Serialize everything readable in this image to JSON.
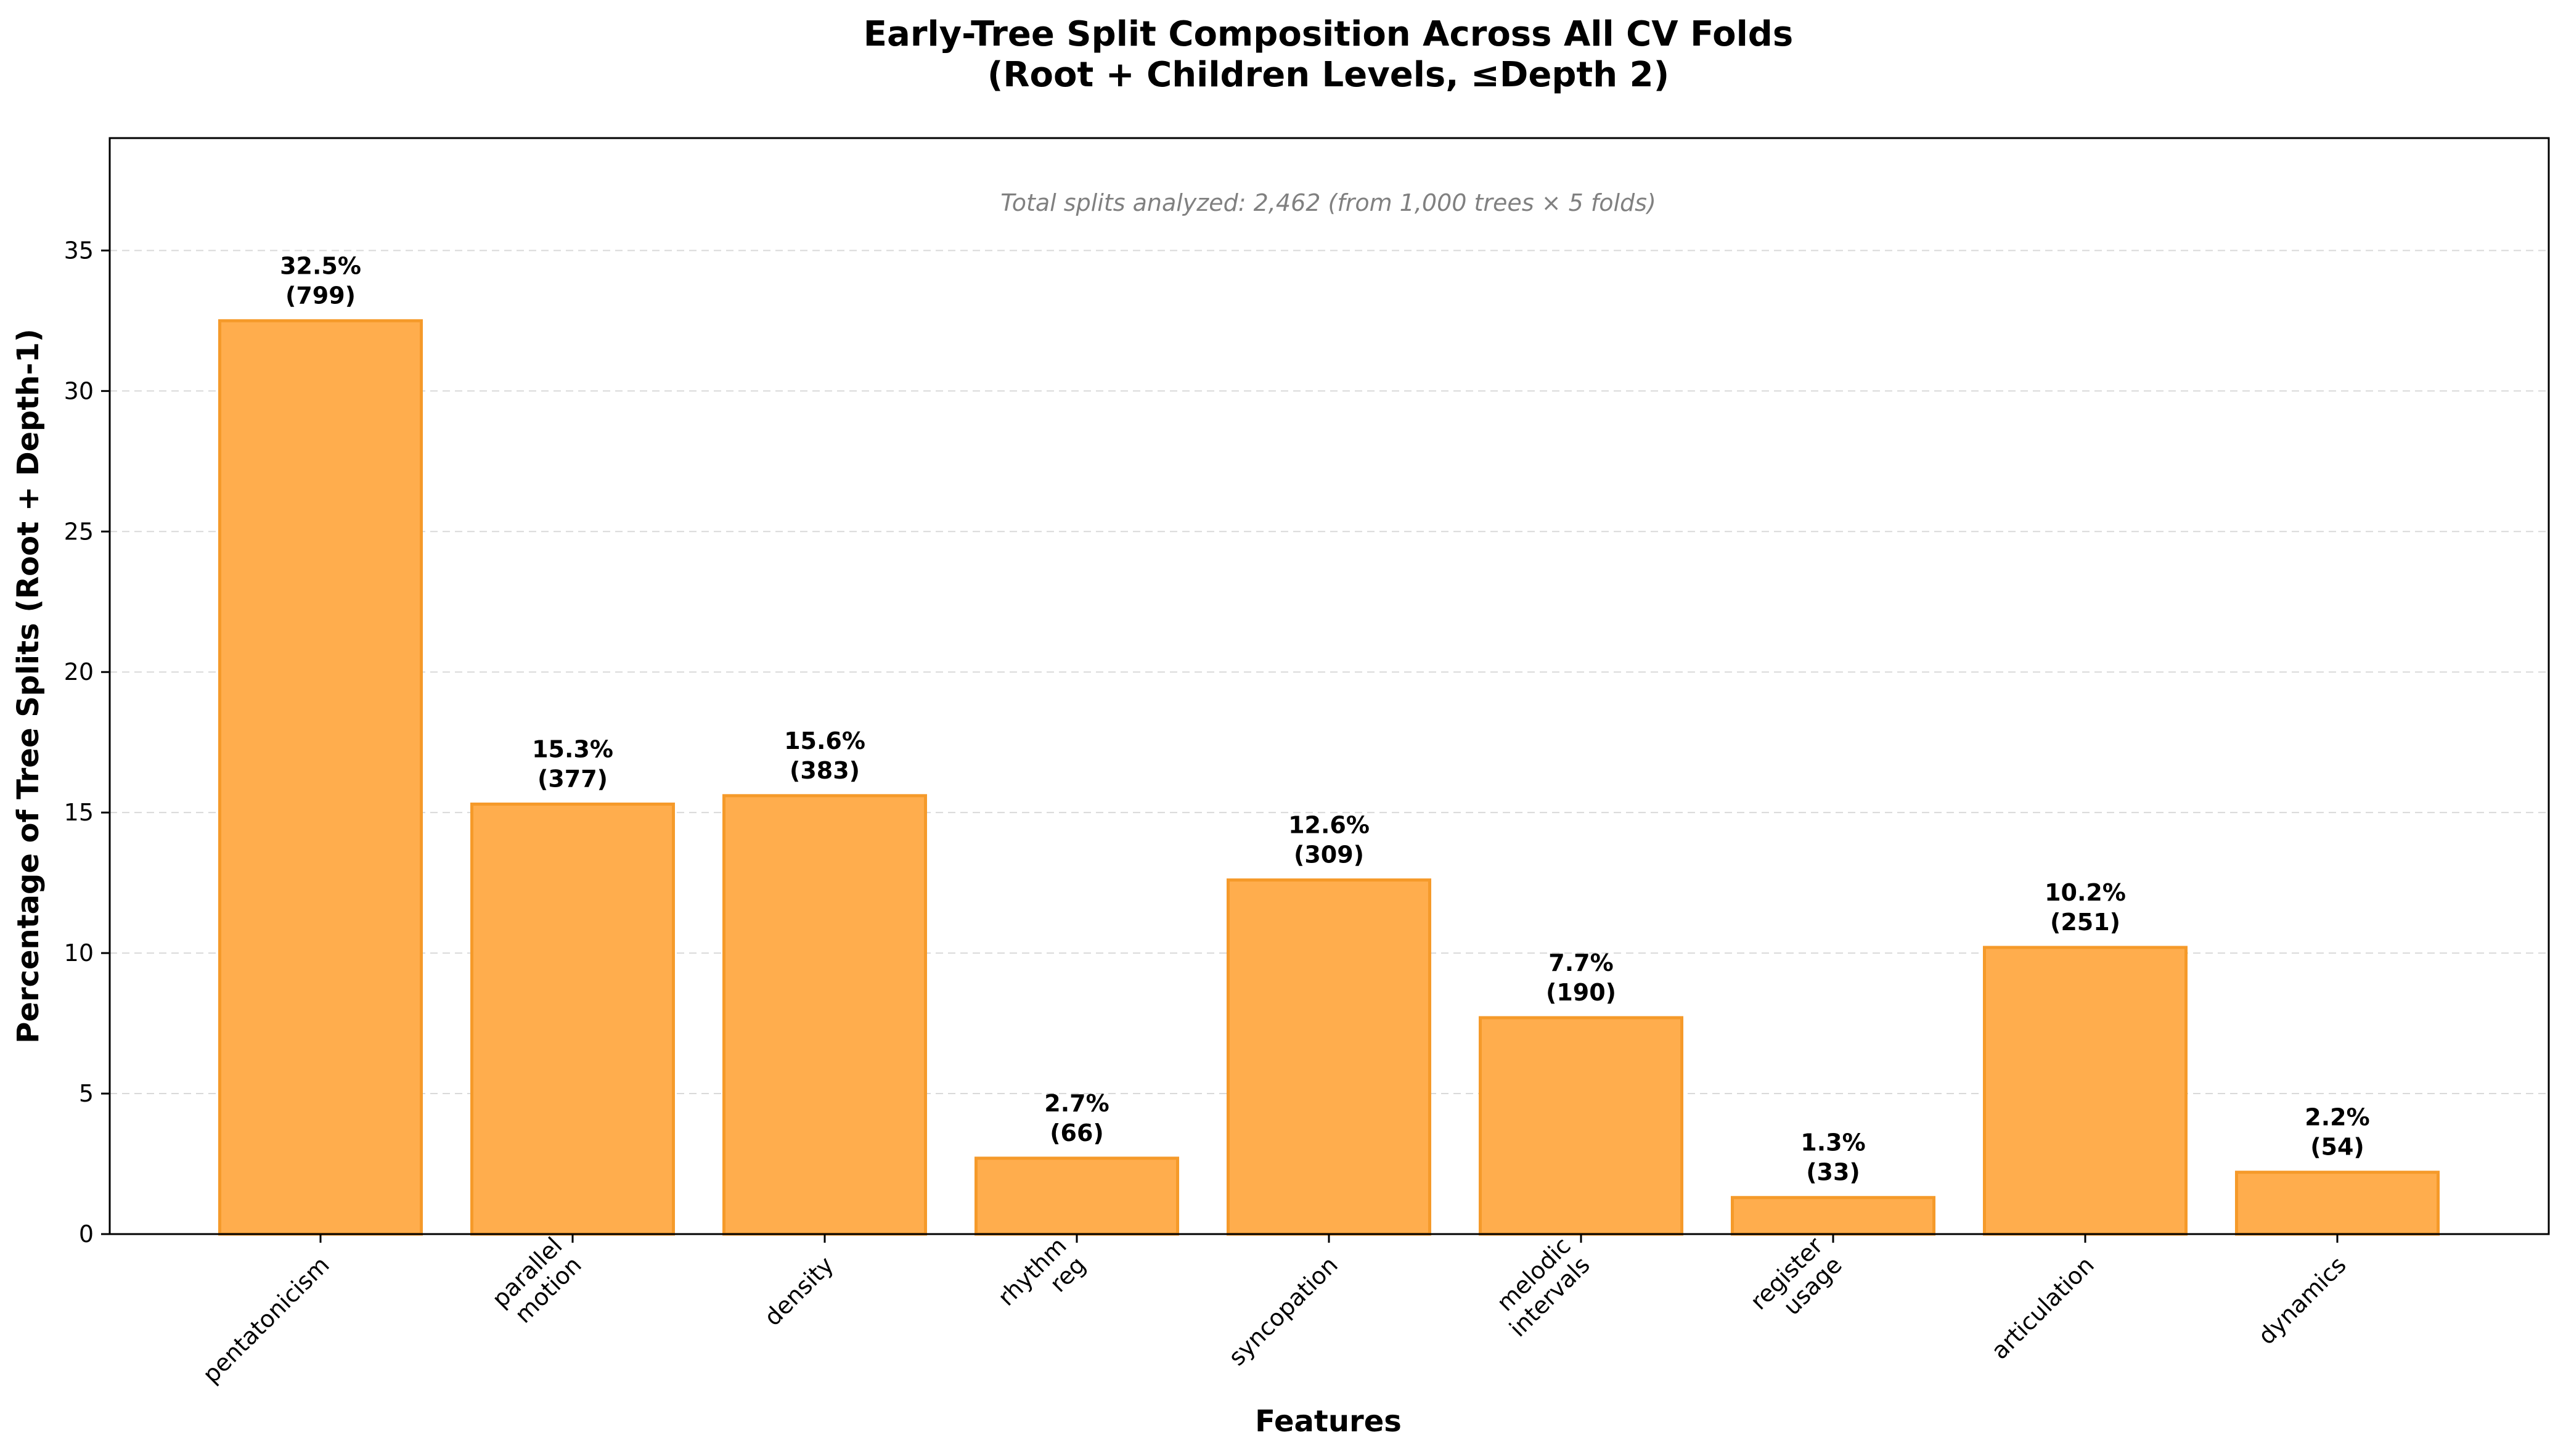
{
  "chart_data": {
    "type": "bar",
    "title": "Early-Tree Split Composition Across All CV Folds",
    "subtitle": "(Root + Children Levels, ≤Depth 2)",
    "xlabel": "Features",
    "ylabel": "Percentage of Tree Splits (Root + Depth-1)",
    "annotation": "Total splits analyzed: 2,462 (from 1,000 trees × 5 folds)",
    "categories": [
      [
        "pentatonicism"
      ],
      [
        "parallel",
        "motion"
      ],
      [
        "density"
      ],
      [
        "rhythm",
        "reg"
      ],
      [
        "syncopation"
      ],
      [
        "melodic",
        "intervals"
      ],
      [
        "register",
        "usage"
      ],
      [
        "articulation"
      ],
      [
        "dynamics"
      ]
    ],
    "values": [
      32.5,
      15.3,
      15.6,
      2.7,
      12.6,
      7.7,
      1.3,
      10.2,
      2.2
    ],
    "value_labels": [
      "32.5%",
      "15.3%",
      "15.6%",
      "2.7%",
      "12.6%",
      "7.7%",
      "1.3%",
      "10.2%",
      "2.2%"
    ],
    "counts": [
      "(799)",
      "(377)",
      "(383)",
      "(66)",
      "(309)",
      "(190)",
      "(33)",
      "(251)",
      "(54)"
    ],
    "yticks": [
      "0",
      "5",
      "10",
      "15",
      "20",
      "25",
      "30",
      "35"
    ],
    "ylim": [
      0,
      39
    ],
    "grid": "horizontal dashed",
    "bar_color": "#ffad4d",
    "bar_edge_color": "#f59a2a"
  }
}
